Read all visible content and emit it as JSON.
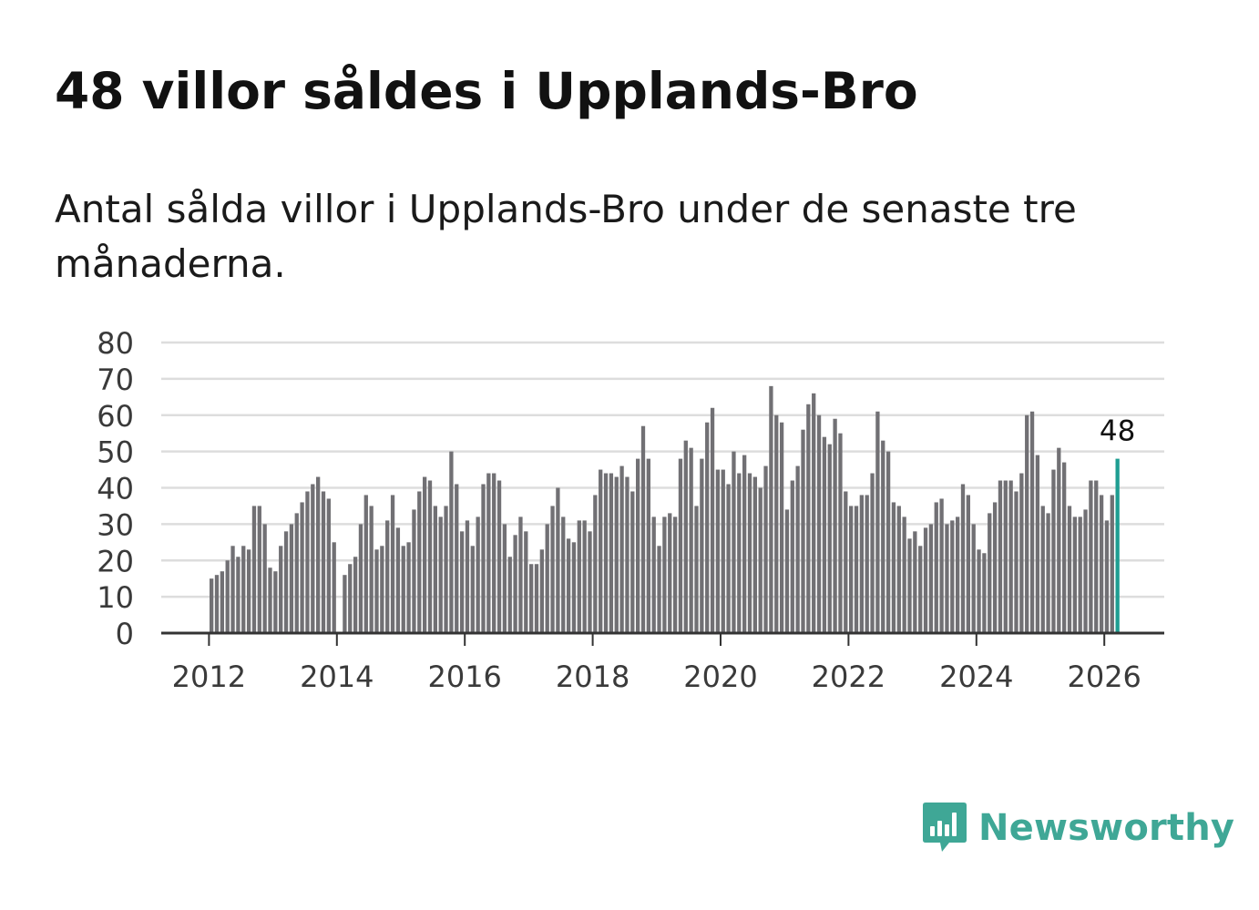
{
  "title": "48 villor såldes i Upplands-Bro",
  "subtitle": "Antal sålda villor i Upplands-Bro under de senaste tre månaderna.",
  "brand": {
    "name": "Newsworthy",
    "color": "#3fa796",
    "icon": "newsworthy-chart-bubble-icon"
  },
  "colors": {
    "bar": "#717074",
    "highlight": "#1f9e92",
    "grid": "#dddddd",
    "axis": "#333333"
  },
  "chart_data": {
    "type": "bar",
    "title": "48 villor såldes i Upplands-Bro",
    "xlabel": "",
    "ylabel": "",
    "ylim": [
      0,
      80
    ],
    "y_ticks": [
      "0",
      "10",
      "20",
      "30",
      "40",
      "50",
      "60",
      "70",
      "80"
    ],
    "x_ticks": [
      "2012",
      "2014",
      "2016",
      "2018",
      "2020",
      "2022",
      "2024",
      "2026"
    ],
    "start": "2012-01",
    "end": "2026-03",
    "values": [
      15,
      16,
      17,
      20,
      24,
      21,
      24,
      23,
      35,
      35,
      30,
      18,
      17,
      24,
      28,
      30,
      33,
      36,
      39,
      41,
      43,
      39,
      37,
      25,
      null,
      16,
      19,
      21,
      30,
      38,
      35,
      23,
      24,
      31,
      38,
      29,
      24,
      25,
      34,
      39,
      43,
      42,
      35,
      32,
      35,
      50,
      41,
      28,
      31,
      24,
      32,
      41,
      44,
      44,
      42,
      30,
      21,
      27,
      32,
      28,
      19,
      19,
      23,
      30,
      35,
      40,
      32,
      26,
      25,
      31,
      31,
      28,
      38,
      45,
      44,
      44,
      43,
      46,
      43,
      39,
      48,
      57,
      48,
      32,
      24,
      32,
      33,
      32,
      48,
      53,
      51,
      35,
      48,
      58,
      62,
      45,
      45,
      41,
      50,
      44,
      49,
      44,
      43,
      40,
      46,
      68,
      60,
      58,
      34,
      42,
      46,
      56,
      63,
      66,
      60,
      54,
      52,
      59,
      55,
      39,
      35,
      35,
      38,
      38,
      44,
      61,
      53,
      50,
      36,
      35,
      32,
      26,
      28,
      24,
      29,
      30,
      36,
      37,
      30,
      31,
      32,
      41,
      38,
      30,
      23,
      22,
      33,
      36,
      42,
      42,
      42,
      39,
      44,
      60,
      61,
      49,
      35,
      33,
      45,
      51,
      47,
      35,
      32,
      32,
      34,
      42,
      42,
      38,
      31,
      38,
      48
    ],
    "highlight": {
      "label": "48",
      "value": 48
    }
  }
}
